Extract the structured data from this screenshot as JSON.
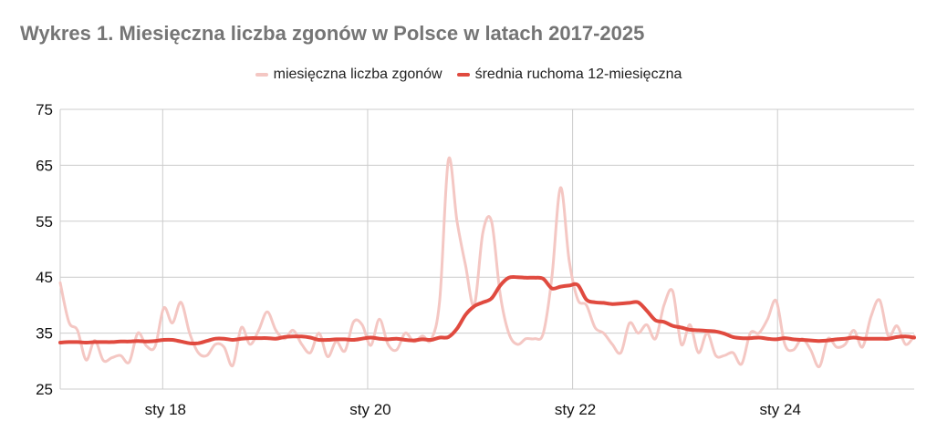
{
  "chart_data": {
    "type": "line",
    "title": "Wykres 1. Miesięczna liczba zgonów w Polsce w latach 2017-2025",
    "ylim": [
      25,
      75
    ],
    "y_ticks": [
      "75",
      "65",
      "55",
      "45",
      "35",
      "25"
    ],
    "x_tick_labels": [
      "sty 18",
      "sty 20",
      "sty 22",
      "sty 24"
    ],
    "x_start": "2017-01",
    "x_end": "2025-05",
    "grid": true,
    "legend_position": "top-center",
    "series": [
      {
        "name": "miesięczna liczba zgonów",
        "color": "#f4c7c3",
        "values": [
          44.0,
          37.0,
          35.5,
          30.2,
          33.7,
          30.1,
          30.6,
          31.0,
          29.8,
          35.0,
          32.7,
          32.6,
          39.5,
          36.8,
          40.5,
          35.0,
          31.5,
          31.0,
          33.0,
          32.5,
          29.2,
          36.0,
          33.0,
          35.5,
          38.8,
          35.5,
          34.0,
          35.5,
          33.0,
          31.5,
          35.0,
          30.8,
          33.5,
          31.8,
          37.0,
          36.5,
          32.8,
          37.5,
          33.0,
          32.0,
          35.0,
          33.5,
          34.5,
          33.8,
          41.0,
          66.0,
          55.0,
          47.0,
          40.0,
          53.0,
          55.0,
          42.0,
          35.0,
          33.0,
          34.0,
          34.0,
          35.0,
          45.0,
          61.0,
          48.0,
          41.0,
          40.0,
          36.0,
          35.0,
          33.0,
          31.5,
          36.8,
          35.0,
          36.5,
          34.0,
          40.0,
          42.5,
          33.0,
          36.5,
          31.5,
          35.0,
          31.0,
          31.0,
          31.5,
          29.5,
          35.0,
          35.0,
          37.5,
          40.8,
          33.0,
          32.0,
          34.0,
          32.0,
          29.0,
          34.0,
          32.5,
          33.0,
          35.5,
          32.5,
          38.0,
          40.9,
          34.5,
          36.3,
          33.0,
          34.5
        ]
      },
      {
        "name": "średnia ruchoma 12-miesięczna",
        "color": "#e04a3f",
        "values": [
          33.3,
          33.4,
          33.4,
          33.3,
          33.4,
          33.4,
          33.4,
          33.5,
          33.5,
          33.6,
          33.5,
          33.6,
          33.8,
          33.8,
          33.5,
          33.2,
          33.2,
          33.6,
          34.0,
          34.0,
          33.8,
          34.0,
          34.1,
          34.1,
          34.1,
          34.0,
          34.3,
          34.4,
          34.4,
          34.2,
          33.8,
          33.8,
          33.9,
          33.9,
          33.8,
          34.0,
          34.2,
          34.0,
          33.9,
          34.0,
          33.8,
          33.7,
          33.9,
          33.8,
          34.2,
          34.3,
          35.8,
          38.3,
          39.8,
          40.5,
          41.2,
          43.5,
          44.9,
          45.0,
          44.9,
          44.9,
          44.7,
          43.0,
          43.3,
          43.5,
          43.6,
          41.0,
          40.5,
          40.4,
          40.2,
          40.3,
          40.4,
          40.5,
          39.0,
          37.3,
          37.0,
          36.3,
          36.0,
          35.6,
          35.5,
          35.4,
          35.3,
          34.9,
          34.3,
          34.1,
          34.1,
          34.2,
          34.0,
          33.9,
          34.1,
          33.9,
          33.8,
          33.7,
          33.6,
          33.7,
          33.9,
          34.0,
          34.2,
          34.0,
          34.0,
          34.0,
          34.0,
          34.3,
          34.4,
          34.2
        ]
      }
    ]
  }
}
